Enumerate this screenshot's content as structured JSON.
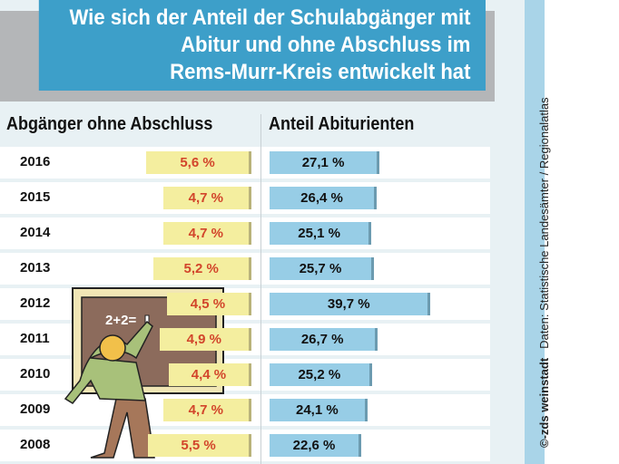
{
  "title": [
    "Wie sich der Anteil der Schulabgänger mit",
    "Abitur und ohne Abschluss im",
    "Rems-Murr-Kreis entwickelt hat"
  ],
  "credit": {
    "agency": "©-zds weinstadt",
    "source": "Daten: Statistische Landesämter / Regionalatlas"
  },
  "illustration": {
    "chalkboard_text": "2+2="
  },
  "colors": {
    "title_bg": "#3d9fc9",
    "left_bar": "#f4ee9f",
    "right_bar": "#97cde6",
    "left_text": "#d2452b"
  },
  "chart_data": {
    "type": "bar",
    "title": "Wie sich der Anteil der Schulabgänger mit Abitur und ohne Abschluss im Rems-Murr-Kreis entwickelt hat",
    "categories": [
      "2016",
      "2015",
      "2014",
      "2013",
      "2012",
      "2011",
      "2010",
      "2009",
      "2008"
    ],
    "series": [
      {
        "name": "Abgänger ohne Abschluss",
        "values": [
          5.6,
          4.7,
          4.7,
          5.2,
          4.5,
          4.9,
          4.4,
          4.7,
          5.5
        ],
        "labels": [
          "5,6 %",
          "4,7 %",
          "4,7 %",
          "5,2 %",
          "4,5 %",
          "4,9 %",
          "4,4 %",
          "4,7 %",
          "5,5 %"
        ]
      },
      {
        "name": "Anteil Abiturienten",
        "values": [
          27.1,
          26.4,
          25.1,
          25.7,
          39.7,
          26.7,
          25.2,
          24.1,
          22.6
        ],
        "labels": [
          "27,1 %",
          "26,4 %",
          "25,1 %",
          "25,7 %",
          "39,7 %",
          "26,7 %",
          "25,2 %",
          "24,1 %",
          "22,6 %"
        ]
      }
    ],
    "unit": "%"
  }
}
